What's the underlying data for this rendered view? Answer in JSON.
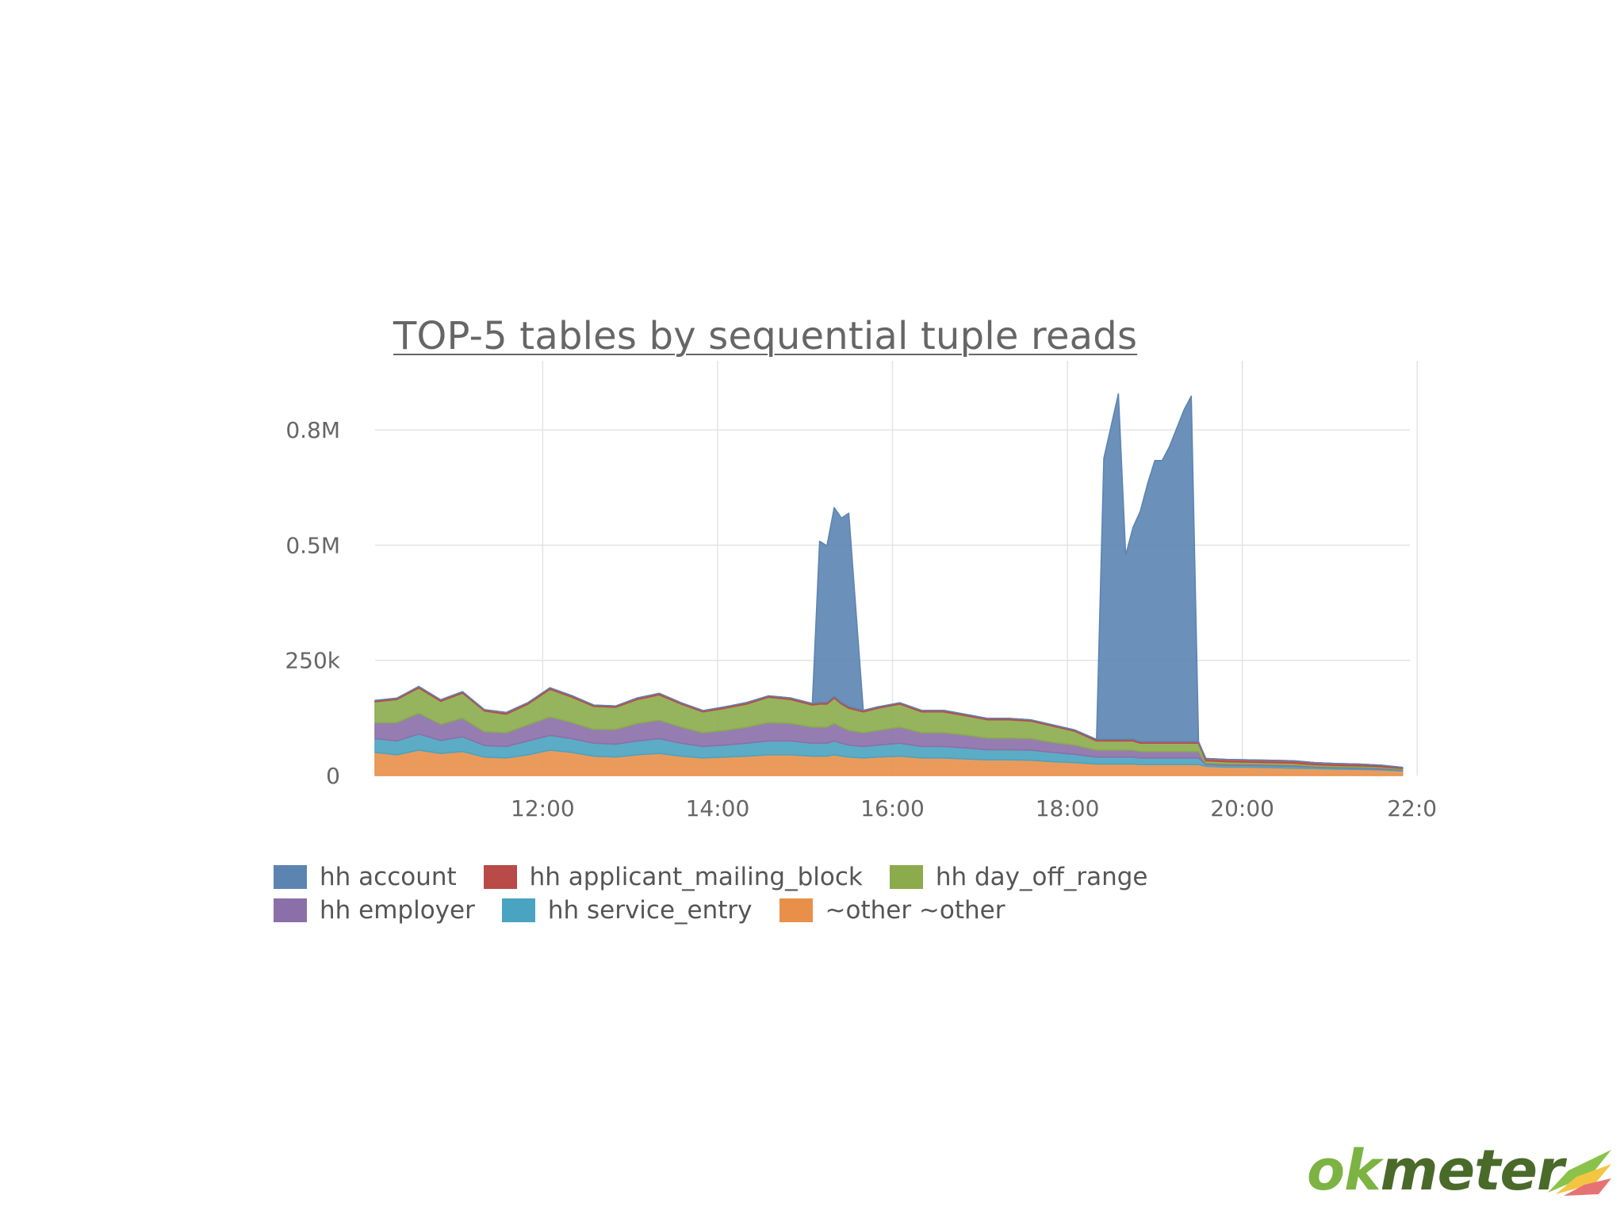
{
  "chart_data": {
    "type": "area",
    "title": "TOP-5 tables by sequential tuple reads",
    "xlabel": "",
    "ylabel": "",
    "x_ticks": [
      "12:00",
      "14:00",
      "16:00",
      "18:00",
      "20:00",
      "22:0"
    ],
    "y_ticks": [
      "0",
      "250k",
      "0.5M",
      "0.8M"
    ],
    "xlim": [
      "10:05",
      "21:55"
    ],
    "ylim": [
      0,
      900000
    ],
    "grid": true,
    "legend_position": "bottom-left",
    "stacked": true,
    "x": [
      "10:05",
      "10:20",
      "10:35",
      "10:50",
      "11:05",
      "11:20",
      "11:35",
      "11:50",
      "12:05",
      "12:20",
      "12:35",
      "12:50",
      "13:05",
      "13:20",
      "13:35",
      "13:50",
      "14:05",
      "14:20",
      "14:35",
      "14:50",
      "15:05",
      "15:10",
      "15:15",
      "15:20",
      "15:25",
      "15:30",
      "15:40",
      "15:50",
      "16:05",
      "16:20",
      "16:35",
      "16:50",
      "17:05",
      "17:20",
      "17:35",
      "17:50",
      "18:05",
      "18:20",
      "18:25",
      "18:35",
      "18:40",
      "18:45",
      "18:50",
      "18:55",
      "19:00",
      "19:05",
      "19:10",
      "19:15",
      "19:20",
      "19:25",
      "19:30",
      "19:35",
      "19:50",
      "20:05",
      "20:20",
      "20:35",
      "20:50",
      "21:05",
      "21:20",
      "21:35",
      "21:50"
    ],
    "series": [
      {
        "name": "hh account",
        "color": "#5b84b1",
        "values": [
          0,
          0,
          0,
          0,
          0,
          0,
          0,
          0,
          0,
          0,
          0,
          0,
          0,
          0,
          0,
          0,
          0,
          0,
          0,
          0,
          0,
          350000,
          340000,
          410000,
          400000,
          420000,
          0,
          0,
          0,
          0,
          0,
          0,
          0,
          0,
          0,
          0,
          0,
          0,
          610000,
          750000,
          400000,
          460000,
          500000,
          560000,
          610000,
          610000,
          640000,
          680000,
          720000,
          750000,
          0,
          0,
          0,
          0,
          0,
          0,
          0,
          0,
          0,
          0,
          0
        ]
      },
      {
        "name": "hh applicant_mailing_block",
        "color": "#b94a48",
        "values": [
          3000,
          3000,
          3500,
          3500,
          3000,
          3000,
          4000,
          3500,
          3500,
          3500,
          3000,
          3000,
          3500,
          3500,
          3000,
          3000,
          3000,
          3500,
          3000,
          3500,
          3500,
          3500,
          3500,
          3500,
          3500,
          3500,
          3500,
          3000,
          3000,
          3500,
          3500,
          3000,
          3000,
          3000,
          3000,
          3000,
          3000,
          3500,
          3500,
          3500,
          3500,
          3500,
          3500,
          3500,
          3500,
          3500,
          3500,
          3500,
          3500,
          3500,
          3500,
          5000,
          5000,
          5000,
          5000,
          5000,
          4500,
          4000,
          4000,
          3000,
          2000
        ]
      },
      {
        "name": "hh day_off_range",
        "color": "#8bab4c",
        "values": [
          45000,
          50000,
          55000,
          50000,
          55000,
          45000,
          40000,
          45000,
          60000,
          55000,
          50000,
          48000,
          52000,
          55000,
          50000,
          45000,
          48000,
          50000,
          55000,
          52000,
          48000,
          50000,
          50000,
          55000,
          50000,
          48000,
          45000,
          48000,
          50000,
          45000,
          45000,
          42000,
          40000,
          40000,
          38000,
          35000,
          30000,
          20000,
          20000,
          20000,
          20000,
          20000,
          18000,
          18000,
          18000,
          18000,
          18000,
          18000,
          18000,
          18000,
          18000,
          5000,
          5000,
          4000,
          4000,
          4000,
          3000,
          3000,
          3000,
          3000,
          2000
        ]
      },
      {
        "name": "hh employer",
        "color": "#8b6fa8",
        "values": [
          35000,
          40000,
          45000,
          35000,
          40000,
          30000,
          30000,
          35000,
          40000,
          35000,
          30000,
          32000,
          38000,
          40000,
          35000,
          30000,
          32000,
          35000,
          40000,
          38000,
          35000,
          35000,
          35000,
          38000,
          35000,
          32000,
          30000,
          32000,
          35000,
          30000,
          30000,
          28000,
          25000,
          25000,
          25000,
          22000,
          20000,
          15000,
          15000,
          15000,
          15000,
          15000,
          14000,
          14000,
          14000,
          14000,
          14000,
          14000,
          14000,
          14000,
          14000,
          3000,
          3000,
          3000,
          3000,
          3000,
          2000,
          2000,
          2000,
          2000,
          1500
        ]
      },
      {
        "name": "hh service_entry",
        "color": "#4aa3c0",
        "values": [
          30000,
          30000,
          35000,
          28000,
          32000,
          25000,
          25000,
          30000,
          32000,
          30000,
          28000,
          28000,
          30000,
          32000,
          28000,
          25000,
          26000,
          28000,
          30000,
          30000,
          28000,
          28000,
          28000,
          30000,
          28000,
          26000,
          25000,
          26000,
          28000,
          25000,
          25000,
          24000,
          22000,
          22000,
          22000,
          20000,
          18000,
          15000,
          15000,
          15000,
          15000,
          15000,
          14000,
          14000,
          14000,
          14000,
          14000,
          14000,
          14000,
          14000,
          14000,
          4000,
          4000,
          4000,
          4000,
          4000,
          3500,
          3000,
          3000,
          2500,
          2000
        ]
      },
      {
        "name": "~other ~other",
        "color": "#e8904a",
        "values": [
          50000,
          45000,
          55000,
          48000,
          52000,
          40000,
          38000,
          45000,
          55000,
          50000,
          42000,
          40000,
          45000,
          48000,
          42000,
          38000,
          40000,
          42000,
          45000,
          45000,
          42000,
          42000,
          42000,
          45000,
          42000,
          40000,
          38000,
          40000,
          42000,
          38000,
          38000,
          36000,
          34000,
          34000,
          33000,
          30000,
          28000,
          25000,
          25000,
          25000,
          25000,
          25000,
          24000,
          24000,
          24000,
          24000,
          24000,
          24000,
          24000,
          24000,
          24000,
          20000,
          18000,
          18000,
          17000,
          16000,
          15000,
          14000,
          13000,
          12000,
          10000
        ]
      }
    ]
  },
  "brand": {
    "logo_ok": "ok",
    "logo_rest": "meter"
  }
}
